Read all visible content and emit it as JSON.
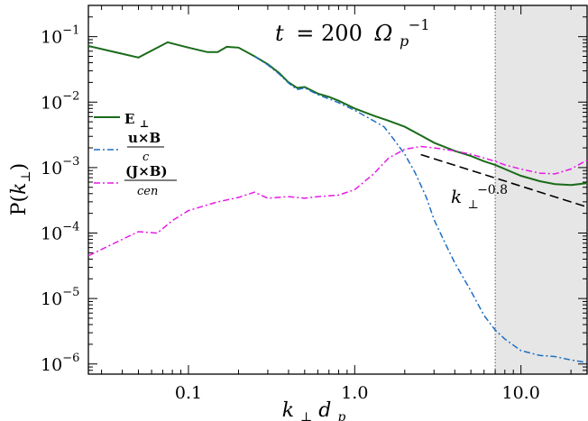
{
  "chart_data": {
    "type": "line",
    "title": "t = 200 Ω_p^-1",
    "title_parts": {
      "lhs": "t",
      "eq": "= 200",
      "omega": "Ω",
      "sub": "p",
      "sup": "−1"
    },
    "xlabel": "k⊥dp",
    "xlabel_parts": {
      "k": "k",
      "perp": "⊥",
      "d": "d",
      "p": "p"
    },
    "ylabel": "P(k⊥)",
    "ylabel_parts": {
      "P": "P(",
      "k": "k",
      "perp": "⊥",
      "close": ")"
    },
    "x_scale": "log",
    "y_scale": "log",
    "xlim": [
      0.025,
      25
    ],
    "ylim": [
      7e-07,
      0.3
    ],
    "x_ticks": [
      {
        "value": 0.1,
        "label": "0.1"
      },
      {
        "value": 1,
        "label": "1.0"
      },
      {
        "value": 10,
        "label": "10.0"
      }
    ],
    "y_ticks": [
      {
        "value": 0.1,
        "base": "10",
        "exp": "−1"
      },
      {
        "value": 0.01,
        "base": "10",
        "exp": "−2"
      },
      {
        "value": 0.001,
        "base": "10",
        "exp": "−3"
      },
      {
        "value": 0.0001,
        "base": "10",
        "exp": "−4"
      },
      {
        "value": 1e-05,
        "base": "10",
        "exp": "−5"
      },
      {
        "value": 1e-06,
        "base": "10",
        "exp": "−6"
      }
    ],
    "grid": false,
    "legend_position": "left",
    "shaded_region": {
      "x_start": 7.0,
      "x_end": 25,
      "color": "#e6e6e6"
    },
    "vertical_line": {
      "x": 7.0
    },
    "fit_line": {
      "label_base": "k",
      "label_sub": "⊥",
      "label_sup": "−0.8",
      "points": [
        [
          2.5,
          0.00158
        ],
        [
          25,
          0.00025
        ]
      ]
    },
    "series": [
      {
        "name": "E⊥",
        "legend_main": "E",
        "legend_sub": "⊥",
        "color": "#1a6b1a",
        "dash": "solid",
        "points": [
          [
            0.025,
            0.072
          ],
          [
            0.05,
            0.048
          ],
          [
            0.075,
            0.082
          ],
          [
            0.1,
            0.068
          ],
          [
            0.13,
            0.058
          ],
          [
            0.15,
            0.058
          ],
          [
            0.17,
            0.07
          ],
          [
            0.2,
            0.068
          ],
          [
            0.25,
            0.05
          ],
          [
            0.3,
            0.038
          ],
          [
            0.35,
            0.028
          ],
          [
            0.4,
            0.02
          ],
          [
            0.45,
            0.0165
          ],
          [
            0.5,
            0.017
          ],
          [
            0.6,
            0.0135
          ],
          [
            0.7,
            0.012
          ],
          [
            0.8,
            0.0105
          ],
          [
            1.0,
            0.008
          ],
          [
            1.3,
            0.0062
          ],
          [
            1.6,
            0.0052
          ],
          [
            2.0,
            0.0042
          ],
          [
            2.5,
            0.0031
          ],
          [
            3.0,
            0.0024
          ],
          [
            4.0,
            0.0018
          ],
          [
            5.0,
            0.0015
          ],
          [
            6.0,
            0.00125
          ],
          [
            7.0,
            0.0011
          ],
          [
            8.0,
            0.00095
          ],
          [
            10.0,
            0.00075
          ],
          [
            13.0,
            0.00062
          ],
          [
            16.0,
            0.00056
          ],
          [
            20.0,
            0.00054
          ],
          [
            25.0,
            0.00058
          ]
        ]
      },
      {
        "name": "u×B/c",
        "legend_main": "u×B",
        "legend_sub": "c",
        "color": "#1f6fc2",
        "dash": "dashdot",
        "points": [
          [
            0.25,
            0.05
          ],
          [
            0.3,
            0.037
          ],
          [
            0.35,
            0.027
          ],
          [
            0.4,
            0.0195
          ],
          [
            0.45,
            0.0155
          ],
          [
            0.5,
            0.0165
          ],
          [
            0.6,
            0.013
          ],
          [
            0.7,
            0.0112
          ],
          [
            0.8,
            0.0098
          ],
          [
            1.0,
            0.0075
          ],
          [
            1.2,
            0.0058
          ],
          [
            1.5,
            0.0042
          ],
          [
            1.7,
            0.0028
          ],
          [
            2.0,
            0.0016
          ],
          [
            2.3,
            0.00085
          ],
          [
            2.7,
            0.00035
          ],
          [
            3.0,
            0.00016
          ],
          [
            3.5,
            7e-05
          ],
          [
            4.0,
            3.5e-05
          ],
          [
            5.0,
            1.3e-05
          ],
          [
            6.0,
            5.5e-06
          ],
          [
            7.0,
            3.3e-06
          ],
          [
            8.0,
            2.4e-06
          ],
          [
            10.0,
            1.6e-06
          ],
          [
            13.0,
            1.35e-06
          ],
          [
            16.0,
            1.3e-06
          ],
          [
            20.0,
            1.15e-06
          ],
          [
            25.0,
            1.05e-06
          ]
        ]
      },
      {
        "name": "(J×B)/cen",
        "legend_main": "(J×B)",
        "legend_sub": "cen",
        "color": "#e619e6",
        "dash": "dashdot",
        "points": [
          [
            0.025,
            4.5e-05
          ],
          [
            0.04,
            8e-05
          ],
          [
            0.05,
            0.000105
          ],
          [
            0.065,
            0.0001
          ],
          [
            0.08,
            0.000155
          ],
          [
            0.1,
            0.00022
          ],
          [
            0.15,
            0.0003
          ],
          [
            0.2,
            0.00035
          ],
          [
            0.25,
            0.00042
          ],
          [
            0.3,
            0.00034
          ],
          [
            0.4,
            0.00036
          ],
          [
            0.5,
            0.00034
          ],
          [
            0.6,
            0.00036
          ],
          [
            0.8,
            0.00038
          ],
          [
            1.0,
            0.00046
          ],
          [
            1.3,
            0.0008
          ],
          [
            1.6,
            0.0014
          ],
          [
            2.0,
            0.0019
          ],
          [
            2.5,
            0.0021
          ],
          [
            3.0,
            0.002
          ],
          [
            4.0,
            0.0018
          ],
          [
            5.0,
            0.0016
          ],
          [
            6.0,
            0.0014
          ],
          [
            7.0,
            0.00125
          ],
          [
            8.0,
            0.0011
          ],
          [
            10.0,
            0.00095
          ],
          [
            13.0,
            0.00082
          ],
          [
            16.0,
            0.0008
          ],
          [
            20.0,
            0.00095
          ],
          [
            25.0,
            0.0013
          ]
        ]
      }
    ]
  }
}
